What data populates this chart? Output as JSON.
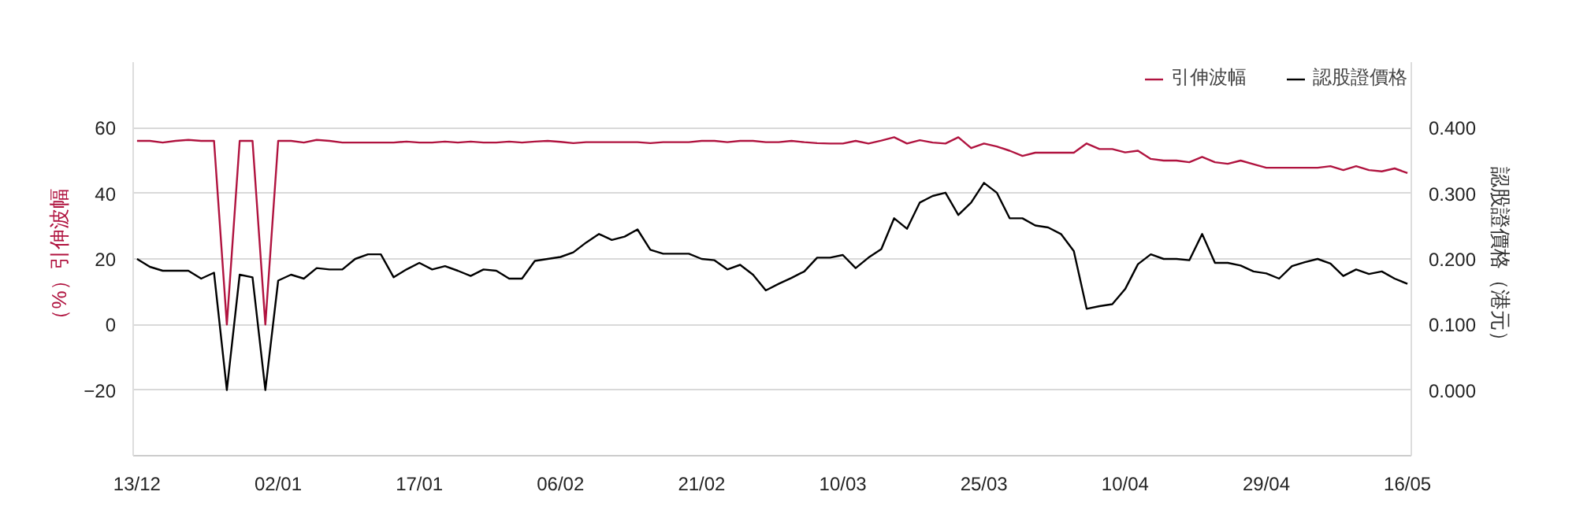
{
  "chart_data": {
    "type": "line",
    "categories": [
      "13/12",
      null,
      null,
      null,
      null,
      null,
      null,
      null,
      null,
      null,
      null,
      "02/01",
      null,
      null,
      null,
      null,
      null,
      null,
      null,
      null,
      null,
      null,
      "17/01",
      null,
      null,
      null,
      null,
      null,
      null,
      null,
      null,
      null,
      null,
      "06/02",
      null,
      null,
      null,
      null,
      null,
      null,
      null,
      null,
      null,
      null,
      "21/02",
      null,
      null,
      null,
      null,
      null,
      null,
      null,
      null,
      null,
      null,
      "10/03",
      null,
      null,
      null,
      null,
      null,
      null,
      null,
      null,
      null,
      null,
      "25/03",
      null,
      null,
      null,
      null,
      null,
      null,
      null,
      null,
      null,
      null,
      "10/04",
      null,
      null,
      null,
      null,
      null,
      null,
      null,
      null,
      null,
      null,
      "29/04",
      null,
      null,
      null,
      null,
      null,
      null,
      null,
      null,
      null,
      null,
      "16/05"
    ],
    "series": [
      {
        "name": "引伸波幅",
        "color": "#b0133f",
        "values": [
          56,
          56,
          55.5,
          56,
          56.3,
          56,
          56,
          0,
          56,
          56,
          0,
          56,
          56,
          55.5,
          56.3,
          56,
          55.5,
          55.5,
          55.5,
          55.5,
          55.5,
          55.8,
          55.5,
          55.5,
          55.8,
          55.5,
          55.8,
          55.5,
          55.5,
          55.8,
          55.5,
          55.8,
          56,
          55.7,
          55.3,
          55.6,
          55.6,
          55.6,
          55.6,
          55.6,
          55.3,
          55.6,
          55.6,
          55.6,
          56,
          56,
          55.6,
          56,
          56,
          55.6,
          55.6,
          56,
          55.6,
          55.3,
          55.2,
          55.2,
          56,
          55.2,
          56.1,
          57.1,
          55.2,
          56.2,
          55.5,
          55.2,
          57.1,
          53.8,
          55.2,
          54.3,
          53,
          51.4,
          52.4,
          52.4,
          52.4,
          52.4,
          55.2,
          53.5,
          53.5,
          52.5,
          53,
          50.5,
          50,
          50,
          49.5,
          51.1,
          49.5,
          49,
          50,
          48.9,
          47.8,
          47.8,
          47.8,
          47.8,
          47.8,
          48.3,
          47.1,
          48.3,
          47.1,
          46.7,
          47.6,
          46.2
        ]
      },
      {
        "name": "認股證價格",
        "color": "#000000",
        "axis": "y2",
        "values": [
          0.2,
          0.188,
          0.182,
          0.182,
          0.182,
          0.17,
          0.179,
          0.0,
          0.176,
          0.172,
          0.0,
          0.167,
          0.176,
          0.17,
          0.186,
          0.184,
          0.184,
          0.2,
          0.207,
          0.207,
          0.172,
          0.184,
          0.194,
          0.184,
          0.189,
          0.182,
          0.174,
          0.184,
          0.182,
          0.17,
          0.17,
          0.197,
          0.2,
          0.203,
          0.21,
          0.225,
          0.238,
          0.229,
          0.234,
          0.245,
          0.214,
          0.208,
          0.208,
          0.208,
          0.2,
          0.198,
          0.184,
          0.191,
          0.176,
          0.152,
          0.162,
          0.171,
          0.181,
          0.202,
          0.202,
          0.206,
          0.186,
          0.202,
          0.215,
          0.262,
          0.246,
          0.286,
          0.296,
          0.301,
          0.267,
          0.286,
          0.316,
          0.301,
          0.262,
          0.262,
          0.251,
          0.248,
          0.238,
          0.212,
          0.124,
          0.128,
          0.131,
          0.154,
          0.192,
          0.207,
          0.2,
          0.2,
          0.198,
          0.238,
          0.194,
          0.194,
          0.19,
          0.181,
          0.178,
          0.17,
          0.189,
          0.195,
          0.2,
          0.193,
          0.174,
          0.184,
          0.177,
          0.181,
          0.17,
          0.162
        ]
      }
    ],
    "ylabel": "（%）引伸波幅",
    "y2label": "認股證價格（港元）",
    "ylim": [
      -40,
      80
    ],
    "yticks": [
      60,
      40,
      20,
      0,
      -20
    ],
    "y2lim": [
      -0.1,
      0.5
    ],
    "y2ticks": [
      {
        "value": 0.4,
        "label": "0.400"
      },
      {
        "value": 0.3,
        "label": "0.300"
      },
      {
        "value": 0.2,
        "label": "0.200"
      },
      {
        "value": 0.1,
        "label": "0.100"
      },
      {
        "value": 0.0,
        "label": "0.000"
      }
    ],
    "grid": "y",
    "legend": "top right",
    "line_style": "solid"
  }
}
